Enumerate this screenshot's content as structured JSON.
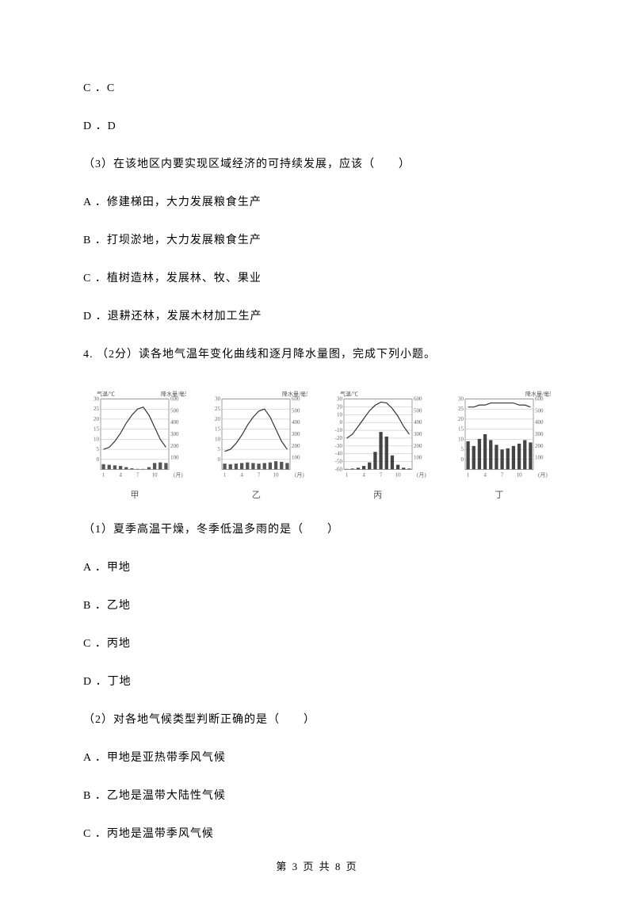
{
  "options_cd": [
    {
      "label": "C ．C"
    },
    {
      "label": "D ．D"
    }
  ],
  "q3": {
    "stem": "（3）在该地区内要实现区域经济的可持续发展，应该（　　）",
    "options": [
      "A ．修建梯田，大力发展粮食生产",
      "B ．打坝淤地，大力发展粮食生产",
      "C ．植树造林，发展林、牧、果业",
      "D ．退耕还林，发展木材加工生产"
    ]
  },
  "q4": {
    "stem": "4. （2分）读各地气温年变化曲线和逐月降水量图，完成下列小题。",
    "charts": [
      {
        "name": "甲",
        "temp_axis_label": "气温/℃",
        "precip_axis_label": "降水量/毫米",
        "temp_range": [
          -5,
          30
        ],
        "temp_ticks": [
          0,
          5,
          10,
          15,
          20,
          25,
          30
        ],
        "precip_range": [
          0,
          600
        ],
        "precip_ticks": [
          100,
          200,
          300,
          400,
          500,
          600
        ],
        "months": [
          1,
          2,
          3,
          4,
          5,
          6,
          7,
          8,
          9,
          10,
          11,
          12
        ],
        "temp_curve": [
          5,
          6,
          9,
          13,
          18,
          22,
          25,
          26,
          22,
          16,
          10,
          6
        ],
        "precip_bars": [
          45,
          40,
          35,
          30,
          20,
          10,
          5,
          5,
          20,
          55,
          60,
          55
        ],
        "bar_color": "#555555",
        "line_color": "#333333",
        "grid_color": "#bbbbbb",
        "bg": "#ffffff",
        "font_size": 7
      },
      {
        "name": "乙",
        "temp_axis_label": "",
        "precip_axis_label": "降水量/毫米",
        "temp_range": [
          -5,
          30
        ],
        "temp_ticks": [
          0,
          5,
          10,
          15,
          20,
          25,
          30
        ],
        "precip_range": [
          0,
          600
        ],
        "precip_ticks": [
          100,
          200,
          300,
          400,
          500,
          600
        ],
        "months": [
          1,
          2,
          3,
          4,
          5,
          6,
          7,
          8,
          9,
          10,
          11,
          12
        ],
        "temp_curve": [
          4,
          5,
          8,
          12,
          17,
          21,
          24,
          25,
          21,
          15,
          9,
          5
        ],
        "precip_bars": [
          50,
          45,
          50,
          55,
          60,
          55,
          50,
          55,
          60,
          70,
          65,
          55
        ],
        "bar_color": "#555555",
        "line_color": "#333333",
        "grid_color": "#bbbbbb",
        "bg": "#ffffff",
        "font_size": 7
      },
      {
        "name": "丙",
        "temp_axis_label": "气温/℃",
        "precip_axis_label": "",
        "temp_range": [
          -60,
          30
        ],
        "temp_ticks": [
          -60,
          -50,
          -40,
          -30,
          -20,
          -10,
          0,
          10,
          20,
          30
        ],
        "precip_range": [
          0,
          600
        ],
        "precip_ticks": [
          100,
          200,
          300,
          400,
          500,
          600
        ],
        "months": [
          1,
          2,
          3,
          4,
          5,
          6,
          7,
          8,
          9,
          10,
          11,
          12
        ],
        "temp_curve": [
          -20,
          -15,
          -5,
          5,
          15,
          22,
          26,
          25,
          18,
          8,
          -5,
          -15
        ],
        "precip_bars": [
          5,
          8,
          15,
          30,
          60,
          150,
          320,
          280,
          120,
          40,
          15,
          8
        ],
        "bar_color": "#444444",
        "line_color": "#333333",
        "grid_color": "#bbbbbb",
        "bg": "#ffffff",
        "font_size": 7
      },
      {
        "name": "丁",
        "temp_axis_label": "",
        "precip_axis_label": "降水量/毫米",
        "temp_range": [
          -5,
          30
        ],
        "temp_ticks": [
          0,
          5,
          10,
          15,
          20,
          25,
          30
        ],
        "precip_range": [
          0,
          600
        ],
        "precip_ticks": [
          100,
          200,
          300,
          400,
          500,
          600
        ],
        "months": [
          1,
          2,
          3,
          4,
          5,
          6,
          7,
          8,
          9,
          10,
          11,
          12
        ],
        "temp_curve": [
          26,
          26,
          27,
          27,
          28,
          28,
          28,
          28,
          28,
          27,
          27,
          26
        ],
        "precip_bars": [
          240,
          200,
          260,
          300,
          250,
          210,
          170,
          180,
          200,
          220,
          250,
          230
        ],
        "bar_color": "#444444",
        "line_color": "#333333",
        "grid_color": "#bbbbbb",
        "bg": "#ffffff",
        "font_size": 7
      }
    ],
    "sub1": {
      "stem": "（1）夏季高温干燥，冬季低温多雨的是（　　）",
      "options": [
        "A ．甲地",
        "B ．乙地",
        "C ．丙地",
        "D ．丁地"
      ]
    },
    "sub2": {
      "stem": "（2）对各地气候类型判断正确的是（　　）",
      "options": [
        "A ．甲地是亚热带季风气候",
        "B ．乙地是温带大陆性气候",
        "C ．丙地是温带季风气候"
      ]
    }
  },
  "footer": "第 3 页 共 8 页"
}
